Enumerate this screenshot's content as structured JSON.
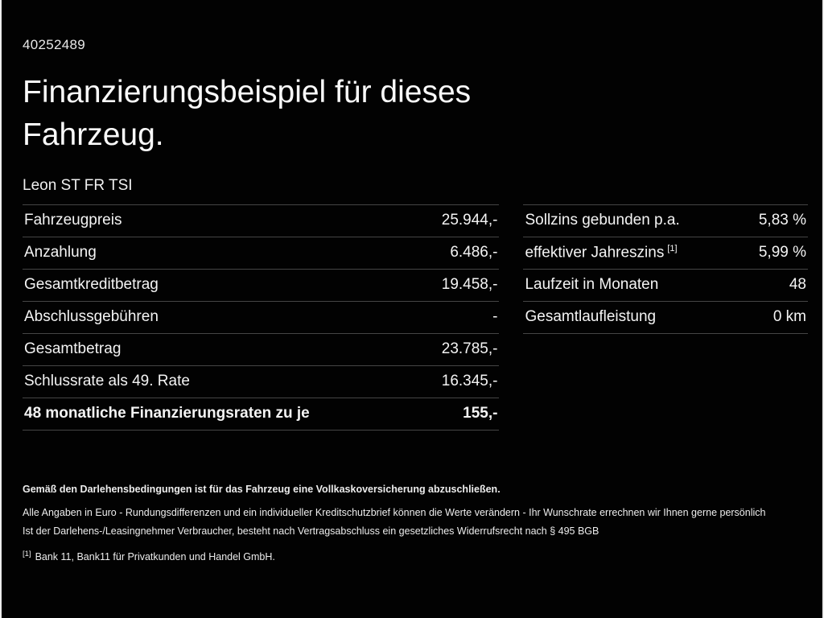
{
  "colors": {
    "background": "#000000",
    "text": "#f4f4f4",
    "divider": "#454545",
    "edge_border": "#ededed"
  },
  "header": {
    "id_number": "40252489",
    "title_line1": "Finanzierungsbeispiel für dieses",
    "title_line2": "Fahrzeug.",
    "model": "Leon ST FR TSI"
  },
  "left_table": {
    "rows": [
      {
        "label": "Fahrzeugpreis",
        "value": "25.944,-"
      },
      {
        "label": "Anzahlung",
        "value": "6.486,-"
      },
      {
        "label": "Gesamtkreditbetrag",
        "value": "19.458,-"
      },
      {
        "label": "Abschlussgebühren",
        "value": "-"
      },
      {
        "label": "Gesamtbetrag",
        "value": "23.785,-"
      },
      {
        "label": "Schlussrate als 49. Rate",
        "value": "16.345,-"
      },
      {
        "label": "48 monatliche Finanzierungsraten zu je",
        "value": "155,-"
      }
    ]
  },
  "right_table": {
    "rows": [
      {
        "label": "Sollzins gebunden p.a.",
        "sup": "",
        "value": "5,83 %"
      },
      {
        "label": "effektiver Jahreszins",
        "sup": "[1]",
        "value": "5,99 %"
      },
      {
        "label": "Laufzeit in Monaten",
        "sup": "",
        "value": "48"
      },
      {
        "label": "Gesamtlaufleistung",
        "sup": "",
        "value": "0 km"
      }
    ]
  },
  "footnotes": {
    "line1": "Gemäß den Darlehensbedingungen ist für das Fahrzeug eine Vollkaskoversicherung abzuschließen.",
    "line2": "Alle Angaben in Euro - Rundungsdifferenzen und ein individueller Kreditschutzbrief können die Werte verändern - Ihr Wunschrate errechnen wir Ihnen gerne persönlich",
    "line3": "Ist der Darlehens-/Leasingnehmer Verbraucher, besteht nach Vertragsabschluss ein gesetzliches Widerrufsrecht nach § 495 BGB",
    "line4_marker": "[1]",
    "line4": "Bank 11, Bank11 für Privatkunden und Handel GmbH."
  }
}
